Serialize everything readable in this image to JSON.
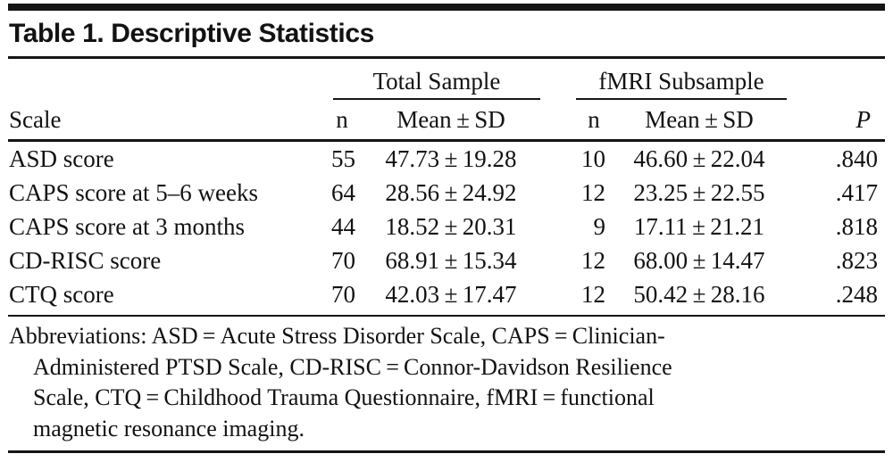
{
  "title": "Table 1. Descriptive Statistics",
  "table": {
    "col_groups": {
      "total": "Total Sample",
      "fmri": "fMRI Subsample"
    },
    "headers": {
      "scale": "Scale",
      "n": "n",
      "mean_sd": "Mean ± SD",
      "p": "P"
    },
    "rows": [
      {
        "scale": "ASD score",
        "total_n": "55",
        "total_mean_sd": "47.73 ± 19.28",
        "fmri_n": "10",
        "fmri_mean_sd": "46.60 ± 22.04",
        "p": ".840"
      },
      {
        "scale": "CAPS score at 5–6 weeks",
        "total_n": "64",
        "total_mean_sd": "28.56 ± 24.92",
        "fmri_n": "12",
        "fmri_mean_sd": "23.25 ± 22.55",
        "p": ".417"
      },
      {
        "scale": "CAPS score at 3 months",
        "total_n": "44",
        "total_mean_sd": "18.52 ± 20.31",
        "fmri_n": "9",
        "fmri_mean_sd": "17.11 ± 21.21",
        "p": ".818"
      },
      {
        "scale": "CD-RISC score",
        "total_n": "70",
        "total_mean_sd": "68.91 ± 15.34",
        "fmri_n": "12",
        "fmri_mean_sd": "68.00 ± 14.47",
        "p": ".823"
      },
      {
        "scale": "CTQ score",
        "total_n": "70",
        "total_mean_sd": "42.03 ± 17.47",
        "fmri_n": "12",
        "fmri_mean_sd": "50.42 ± 28.16",
        "p": ".248"
      }
    ]
  },
  "footnote": {
    "lines": [
      "Abbreviations: ASD = Acute Stress Disorder Scale, CAPS = Clinician-",
      "Administered PTSD Scale, CD-RISC = Connor-Davidson Resilience",
      "Scale, CTQ = Childhood Trauma Questionnaire, fMRI = functional",
      "magnetic resonance imaging."
    ]
  },
  "colors": {
    "text": "#121212",
    "rule": "#151515",
    "background": "#ffffff"
  }
}
